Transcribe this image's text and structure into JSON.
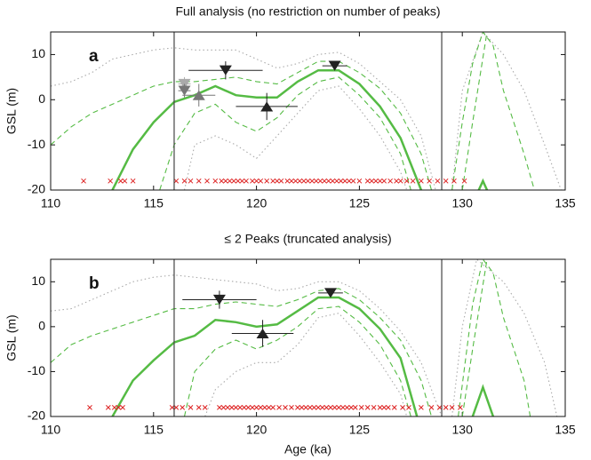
{
  "chart_data": [
    {
      "type": "line",
      "title": "Full analysis (no restriction on number of peaks)",
      "panel_label": "a",
      "ylabel": "GSL (m)",
      "xlim": [
        110,
        135
      ],
      "xticks": [
        110,
        115,
        120,
        125,
        130,
        135
      ],
      "ylim": [
        -20,
        15
      ],
      "yticks": [
        -20,
        -10,
        0,
        10
      ],
      "vlines": [
        116,
        129
      ],
      "vline_color": "#444444",
      "series": [
        {
          "color": "#aaaaaa",
          "style": "dotted",
          "x": [
            110,
            111,
            112,
            113,
            114,
            115,
            116,
            117,
            118,
            119,
            120,
            121,
            122,
            123,
            124,
            125,
            126,
            127,
            128,
            128.7,
            null,
            129.5,
            130,
            131,
            132,
            133,
            134,
            134.8
          ],
          "values": [
            3,
            4,
            6,
            9,
            10,
            11,
            11.5,
            11,
            11,
            11,
            9,
            7,
            8,
            10,
            10.5,
            8,
            4,
            0,
            -8,
            -20,
            null,
            -20,
            2,
            15,
            10,
            2,
            -10,
            -20
          ]
        },
        {
          "color": "#aaaaaa",
          "style": "dotted",
          "x": [
            116.5,
            117,
            118,
            119,
            120,
            121,
            122,
            123,
            124,
            125,
            126,
            127,
            127.3
          ],
          "values": [
            -20,
            -10,
            -8,
            -10,
            -13,
            -8,
            -3,
            2,
            3,
            -2,
            -8,
            -16,
            -20
          ]
        },
        {
          "color": "#55bb44",
          "style": "dashed",
          "x": [
            110,
            111,
            112,
            113,
            114,
            115,
            116,
            117,
            118,
            119,
            120,
            121,
            122,
            123,
            124,
            125,
            126,
            127,
            128,
            128.5,
            null,
            129.5,
            130,
            130.5,
            131,
            131.5,
            132,
            133,
            133.5
          ],
          "values": [
            -10,
            -6,
            -3,
            -1,
            1,
            3,
            4,
            4,
            4.5,
            5,
            4,
            3.5,
            6,
            8.5,
            8.5,
            6,
            2.5,
            -3,
            -12,
            -20,
            null,
            -20,
            -5,
            8,
            15,
            12,
            2,
            -12,
            -20
          ]
        },
        {
          "color": "#55bb44",
          "style": "dashed",
          "x": [
            115.3,
            116,
            117,
            118,
            119,
            120,
            121,
            122,
            123,
            124,
            125,
            126,
            127,
            127.5,
            null,
            130,
            130.5,
            131.2
          ],
          "values": [
            -20,
            -10,
            -3,
            -1,
            -5,
            -7,
            -4,
            1,
            4,
            5,
            1,
            -4,
            -12,
            -20,
            null,
            -20,
            -5,
            15
          ]
        },
        {
          "color": "#55bb44",
          "style": "solid",
          "x": [
            113,
            114,
            115,
            116,
            117,
            118,
            119,
            120,
            121,
            122,
            123,
            124,
            125,
            126,
            127,
            128,
            null,
            130.8,
            131,
            131.2
          ],
          "values": [
            -20,
            -11,
            -5,
            -0.5,
            1,
            3,
            1,
            0.5,
            0.5,
            4,
            6.5,
            6.5,
            3.5,
            -1.5,
            -8.5,
            -20,
            null,
            -20,
            -18,
            -20
          ]
        }
      ],
      "points": [
        {
          "marker": "v",
          "color": "#aaaaaa",
          "x": 116.5,
          "y": 3.5,
          "xerr": 0.3,
          "yerr": 1.5
        },
        {
          "marker": "v",
          "color": "#777777",
          "x": 116.5,
          "y": 2,
          "xerr": 0.3,
          "yerr": 1.5
        },
        {
          "marker": "^",
          "color": "#777777",
          "x": 117.2,
          "y": 1,
          "xerr": 0.8,
          "yerr": 2.5
        },
        {
          "marker": "v",
          "color": "#222222",
          "x": 118.5,
          "y": 6.5,
          "xerr": 1.8,
          "yerr": 2
        },
        {
          "marker": "^",
          "color": "#222222",
          "x": 120.5,
          "y": -1.5,
          "xerr": 1.5,
          "yerr": 3
        },
        {
          "marker": "v",
          "color": "#222222",
          "x": 123.8,
          "y": 7.5,
          "xerr": 0.6,
          "yerr": 1
        }
      ],
      "crosses": {
        "color": "#dd2222",
        "y": -18,
        "x": [
          111.6,
          112.9,
          113.4,
          113.6,
          114.0,
          116.1,
          116.5,
          116.8,
          117.2,
          117.6,
          118.0,
          118.3,
          118.5,
          118.7,
          118.9,
          119.1,
          119.3,
          119.5,
          119.8,
          120.0,
          120.2,
          120.5,
          120.8,
          121.0,
          121.2,
          121.5,
          121.7,
          121.9,
          122.1,
          122.3,
          122.5,
          122.7,
          122.9,
          123.1,
          123.3,
          123.5,
          123.7,
          123.9,
          124.1,
          124.3,
          124.5,
          124.7,
          125.0,
          125.4,
          125.6,
          125.8,
          126.0,
          126.2,
          126.5,
          126.8,
          127.0,
          127.3,
          127.6,
          128.0,
          128.4,
          128.8,
          129.2,
          129.6,
          130.1
        ]
      }
    },
    {
      "type": "line",
      "title": "≤ 2 Peaks (truncated analysis)",
      "panel_label": "b",
      "ylabel": "GSL (m)",
      "xlabel": "Age (ka)",
      "xlim": [
        110,
        135
      ],
      "xticks": [
        110,
        115,
        120,
        125,
        130,
        135
      ],
      "ylim": [
        -20,
        15
      ],
      "yticks": [
        -20,
        -10,
        0,
        10
      ],
      "vlines": [
        116,
        129
      ],
      "vline_color": "#444444",
      "series": [
        {
          "color": "#aaaaaa",
          "style": "dotted",
          "x": [
            110,
            111,
            112,
            113,
            114,
            115,
            116,
            117,
            118,
            119,
            120,
            121,
            122,
            123,
            124,
            125,
            126,
            127,
            128,
            129,
            null,
            129.5,
            130,
            130.7,
            132,
            133,
            134,
            134.6
          ],
          "values": [
            3.5,
            4,
            6,
            8,
            10,
            11,
            11.5,
            11,
            10.5,
            10,
            9.5,
            8,
            8.5,
            10,
            10,
            8,
            4,
            -1,
            -8,
            -20,
            null,
            -20,
            0,
            15,
            10,
            3,
            -8,
            -20
          ]
        },
        {
          "color": "#aaaaaa",
          "style": "dotted",
          "x": [
            117.5,
            118,
            119,
            120,
            121,
            122,
            123,
            124,
            125,
            126,
            127,
            127.3
          ],
          "values": [
            -20,
            -14,
            -10,
            -8,
            -8,
            -4,
            2,
            3,
            -2,
            -8,
            -15,
            -20
          ]
        },
        {
          "color": "#55bb44",
          "style": "dashed",
          "x": [
            110,
            111,
            112,
            113,
            114,
            115,
            116,
            117,
            118,
            119,
            120,
            121,
            122,
            123,
            124,
            125,
            126,
            127,
            128,
            128.5,
            null,
            129.8,
            130.5,
            131,
            131.5,
            132,
            133,
            133.3
          ],
          "values": [
            -8,
            -4,
            -2,
            -0.5,
            1,
            2.5,
            4,
            4,
            5,
            5.5,
            5,
            4.5,
            6,
            8,
            8.5,
            6,
            2,
            -3,
            -12,
            -20,
            null,
            -20,
            5,
            15,
            12,
            2,
            -12,
            -20
          ]
        },
        {
          "color": "#55bb44",
          "style": "dashed",
          "x": [
            116.5,
            117,
            118,
            119,
            120,
            121,
            122,
            123,
            124,
            125,
            126,
            127,
            127.5,
            null,
            130,
            130.5,
            131.2
          ],
          "values": [
            -20,
            -10,
            -5,
            -3,
            -5,
            -3,
            0,
            4,
            4.5,
            1,
            -4,
            -12,
            -20,
            null,
            -20,
            -5,
            15
          ]
        },
        {
          "color": "#55bb44",
          "style": "solid",
          "x": [
            113,
            114,
            115,
            116,
            117,
            118,
            119,
            120,
            121,
            122,
            123,
            124,
            125,
            126,
            127,
            127.8,
            null,
            130.5,
            131,
            131.5
          ],
          "values": [
            -20,
            -12,
            -7.5,
            -3.5,
            -2,
            1.5,
            1,
            0,
            0.5,
            3.5,
            6.5,
            6.5,
            4,
            -0.5,
            -7,
            -20,
            null,
            -20,
            -13.5,
            -20
          ]
        }
      ],
      "points": [
        {
          "marker": "v",
          "color": "#222222",
          "x": 118.2,
          "y": 6,
          "xerr": 1.8,
          "yerr": 2
        },
        {
          "marker": "^",
          "color": "#222222",
          "x": 120.3,
          "y": -1.5,
          "xerr": 1.5,
          "yerr": 3
        },
        {
          "marker": "v",
          "color": "#222222",
          "x": 123.6,
          "y": 7.5,
          "xerr": 0.6,
          "yerr": 1
        }
      ],
      "crosses": {
        "color": "#dd2222",
        "y": -18,
        "x": [
          111.9,
          112.8,
          113.1,
          113.3,
          113.5,
          115.9,
          116.1,
          116.4,
          116.8,
          117.2,
          117.5,
          118.2,
          118.4,
          118.6,
          118.8,
          119.0,
          119.2,
          119.4,
          119.6,
          119.8,
          120.0,
          120.2,
          120.4,
          120.6,
          120.8,
          121.1,
          121.4,
          121.7,
          122.0,
          122.2,
          122.4,
          122.6,
          122.8,
          123.0,
          123.2,
          123.4,
          123.6,
          123.8,
          124.0,
          124.2,
          124.4,
          124.6,
          124.8,
          125.1,
          125.4,
          125.7,
          126.0,
          126.2,
          126.4,
          126.7,
          127.1,
          127.4,
          128.0,
          128.5,
          128.9,
          129.2,
          129.5,
          129.9
        ]
      }
    }
  ]
}
